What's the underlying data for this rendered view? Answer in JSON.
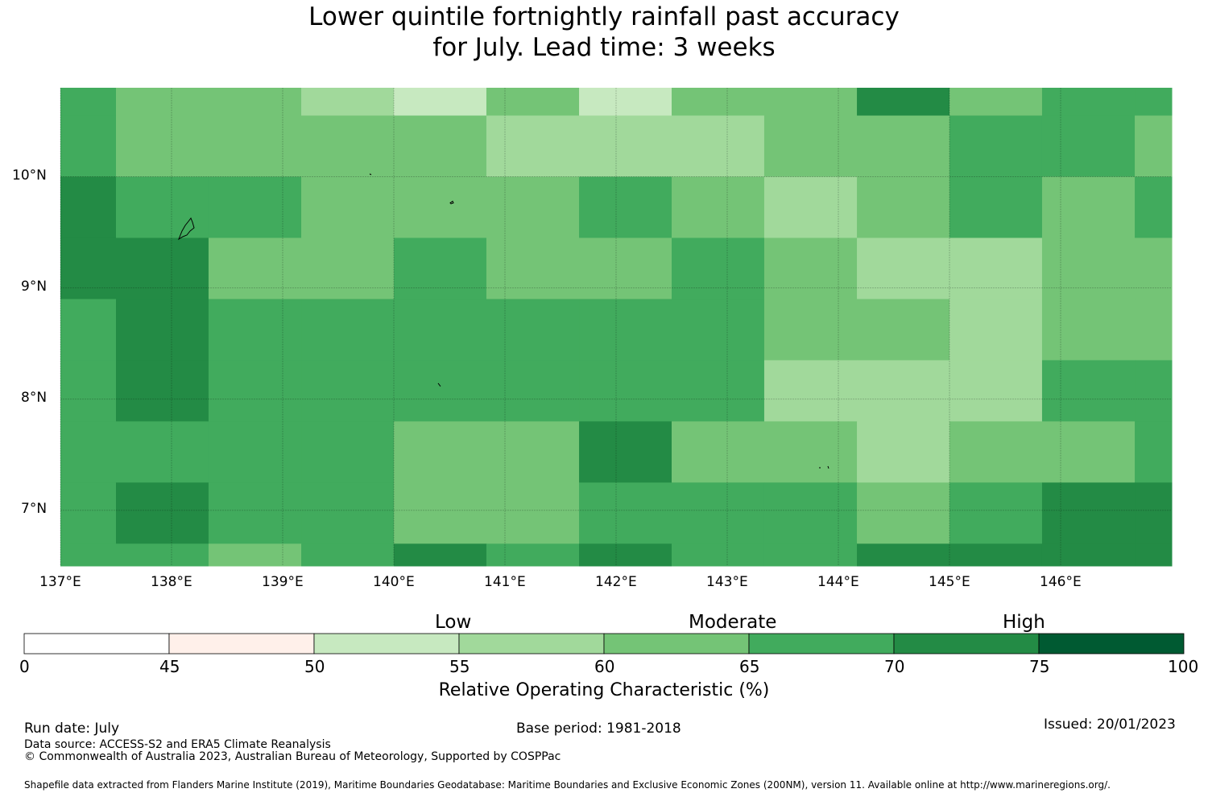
{
  "title": {
    "line1": "Lower quintile fortnightly rainfall past accuracy",
    "line2": "for July. Lead time: 3 weeks"
  },
  "map": {
    "lon_range": [
      137.0,
      147.0
    ],
    "lat_range": [
      6.5,
      10.8
    ],
    "lon_ticks": [
      137,
      138,
      139,
      140,
      141,
      142,
      143,
      144,
      145,
      146
    ],
    "lon_tick_labels": [
      "137°E",
      "138°E",
      "139°E",
      "140°E",
      "141°E",
      "142°E",
      "143°E",
      "144°E",
      "145°E",
      "146°E"
    ],
    "lat_ticks": [
      10,
      9,
      8,
      7
    ],
    "lat_tick_labels": [
      "10°N",
      "9°N",
      "8°N",
      "7°N"
    ],
    "lon_edges": [
      137.0,
      137.5,
      138.333,
      139.167,
      140.0,
      140.833,
      141.667,
      142.5,
      143.333,
      144.167,
      145.0,
      145.833,
      146.667,
      147.0
    ],
    "lat_edges": [
      10.8,
      10.55,
      10.0,
      9.45,
      8.9,
      8.35,
      7.8,
      7.25,
      6.7,
      6.5
    ],
    "grid_lines": true,
    "cell_roc_classes_note": "",
    "cells": [
      [
        65,
        60,
        60,
        55,
        50,
        60,
        50,
        60,
        60,
        70,
        60,
        65,
        65
      ],
      [
        65,
        60,
        60,
        60,
        60,
        55,
        55,
        55,
        60,
        60,
        65,
        65,
        60
      ],
      [
        70,
        65,
        65,
        60,
        60,
        60,
        65,
        60,
        55,
        60,
        65,
        60,
        65
      ],
      [
        70,
        70,
        60,
        60,
        65,
        60,
        60,
        65,
        60,
        55,
        55,
        60,
        60
      ],
      [
        65,
        70,
        65,
        65,
        65,
        65,
        65,
        65,
        60,
        60,
        55,
        60,
        60
      ],
      [
        65,
        70,
        65,
        65,
        65,
        65,
        65,
        65,
        55,
        55,
        55,
        65,
        65
      ],
      [
        65,
        65,
        65,
        65,
        60,
        60,
        70,
        60,
        60,
        55,
        60,
        60,
        65
      ],
      [
        65,
        70,
        65,
        65,
        60,
        60,
        65,
        65,
        65,
        60,
        65,
        70,
        70
      ],
      [
        65,
        65,
        60,
        65,
        70,
        65,
        70,
        65,
        65,
        70,
        70,
        70,
        70
      ]
    ]
  },
  "colorbar": {
    "boundaries": [
      0,
      45,
      50,
      55,
      60,
      65,
      70,
      75,
      100
    ],
    "tick_labels": [
      "0",
      "45",
      "50",
      "55",
      "60",
      "65",
      "70",
      "75",
      "100"
    ],
    "colors": [
      "#ffffff",
      "#fff0ea",
      "#c7e9c0",
      "#a1d99b",
      "#74c476",
      "#41ab5d",
      "#238b45",
      "#005a32"
    ],
    "category_labels": [
      "Low",
      "Moderate",
      "High"
    ],
    "label": "Relative Operating Characteristic (%)"
  },
  "footer": {
    "run_date": "Run date: July",
    "base_period": "Base period: 1981-2018",
    "issued": "Issued: 20/01/2023",
    "data_source": "Data source: ACCESS-S2 and ERA5 Climate Reanalysis",
    "copyright": "© Commonwealth of Australia 2023, Australian Bureau of Meteorology, Supported by COSPPac",
    "shapefile": "Shapefile data extracted from Flanders Marine Institute (2019), Maritime Boundaries Geodatabase: Maritime Boundaries and Exclusive Economic Zones (200NM), version 11. Available online at http://www.marineregions.org/."
  }
}
